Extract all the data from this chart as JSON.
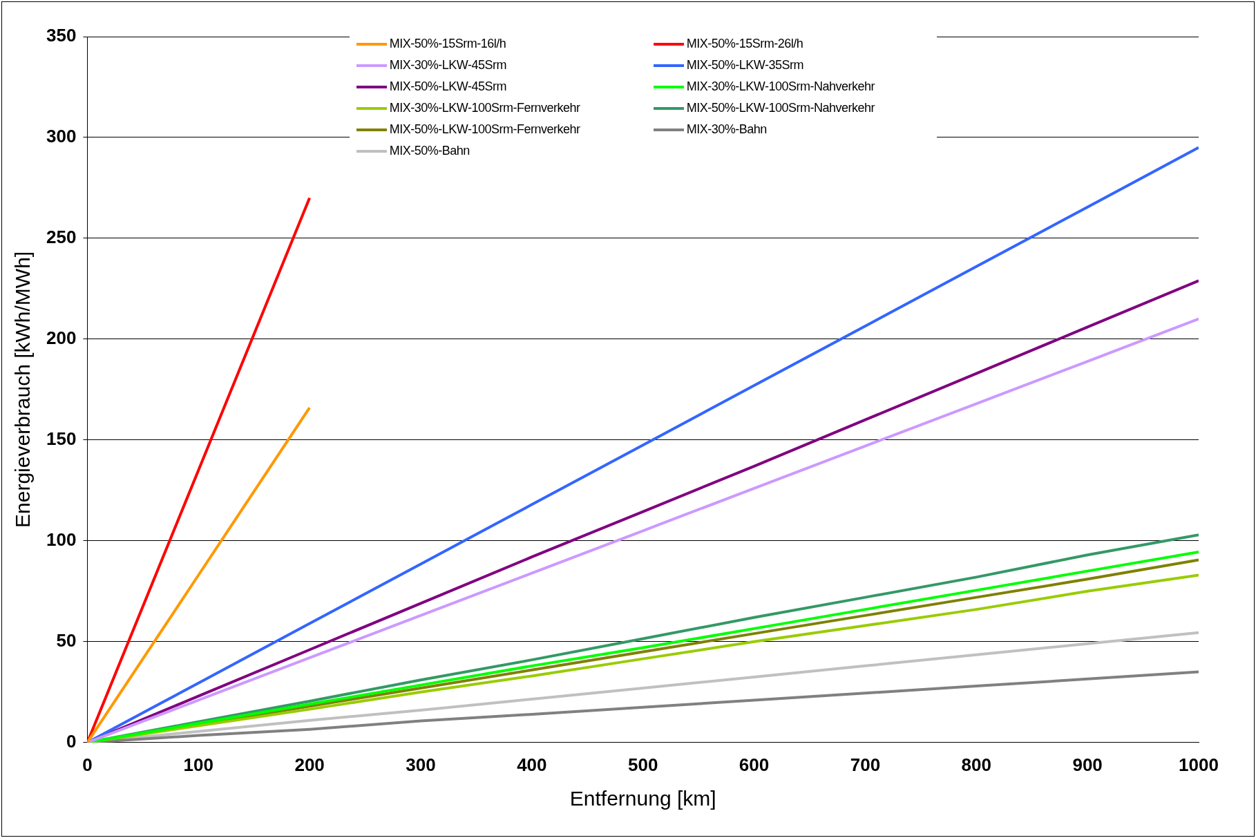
{
  "chart_data": {
    "type": "line",
    "xlabel": "Entfernung [km]",
    "ylabel": "Energieverbrauch [kWh/MWh]",
    "x": [
      0,
      100,
      200,
      300,
      400,
      500,
      600,
      700,
      800,
      900,
      1000
    ],
    "xlim": [
      0,
      1000
    ],
    "xticks": [
      0,
      100,
      200,
      300,
      400,
      500,
      600,
      700,
      800,
      900,
      1000
    ],
    "ylim": [
      0,
      350
    ],
    "yticks": [
      0,
      50,
      100,
      150,
      200,
      250,
      300,
      350
    ],
    "grid": "y",
    "legend": "top",
    "marker": "none",
    "line_style": "solid",
    "series": [
      {
        "name": "MIX-50%-15Srm-16l/h",
        "color": "#ff9900",
        "x": [
          0,
          100,
          200
        ],
        "values": [
          0,
          83,
          166
        ]
      },
      {
        "name": "MIX-50%-15Srm-26l/h",
        "color": "#ff0000",
        "x": [
          0,
          100,
          200
        ],
        "values": [
          0,
          135,
          270
        ]
      },
      {
        "name": "MIX-30%-LKW-45Srm",
        "color": "#cc99ff",
        "values": [
          0,
          21,
          42,
          63,
          84,
          105,
          126,
          147,
          168,
          189,
          210
        ]
      },
      {
        "name": "MIX-50%-LKW-35Srm",
        "color": "#3366ff",
        "values": [
          0,
          29.5,
          59,
          88.5,
          118,
          147.5,
          177,
          206.5,
          236,
          265.5,
          295
        ]
      },
      {
        "name": "MIX-50%-LKW-45Srm",
        "color": "#800080",
        "values": [
          0,
          23,
          46,
          69,
          92,
          114.5,
          137,
          160,
          183,
          206,
          229
        ]
      },
      {
        "name": "MIX-30%-LKW-100Srm-Nahverkehr",
        "color": "#00ff00",
        "values": [
          0,
          9.5,
          19,
          28.5,
          38,
          47,
          56.5,
          66,
          75.5,
          85,
          94.5
        ]
      },
      {
        "name": "MIX-30%-LKW-100Srm-Fernverkehr",
        "color": "#99cc00",
        "values": [
          0,
          8.3,
          16.5,
          25,
          33,
          41.5,
          50,
          58,
          66,
          75,
          83
        ]
      },
      {
        "name": "MIX-50%-LKW-100Srm-Nahverkehr",
        "color": "#339966",
        "values": [
          0,
          10.3,
          20.5,
          31,
          41,
          51.5,
          62,
          72,
          82,
          93,
          103
        ]
      },
      {
        "name": "MIX-50%-LKW-100Srm-Fernverkehr",
        "color": "#808000",
        "values": [
          0,
          9,
          18,
          27,
          36,
          45,
          54,
          63,
          72,
          81,
          90.5
        ]
      },
      {
        "name": "MIX-30%-Bahn",
        "color": "#808080",
        "values": [
          0,
          3.5,
          6.5,
          10.7,
          14,
          17.5,
          21,
          24.5,
          28,
          31.5,
          35
        ]
      },
      {
        "name": "MIX-50%-Bahn",
        "color": "#c0c0c0",
        "values": [
          0,
          5.5,
          11,
          16,
          21.5,
          27,
          32.5,
          38,
          43.5,
          49,
          54.5
        ]
      }
    ]
  }
}
